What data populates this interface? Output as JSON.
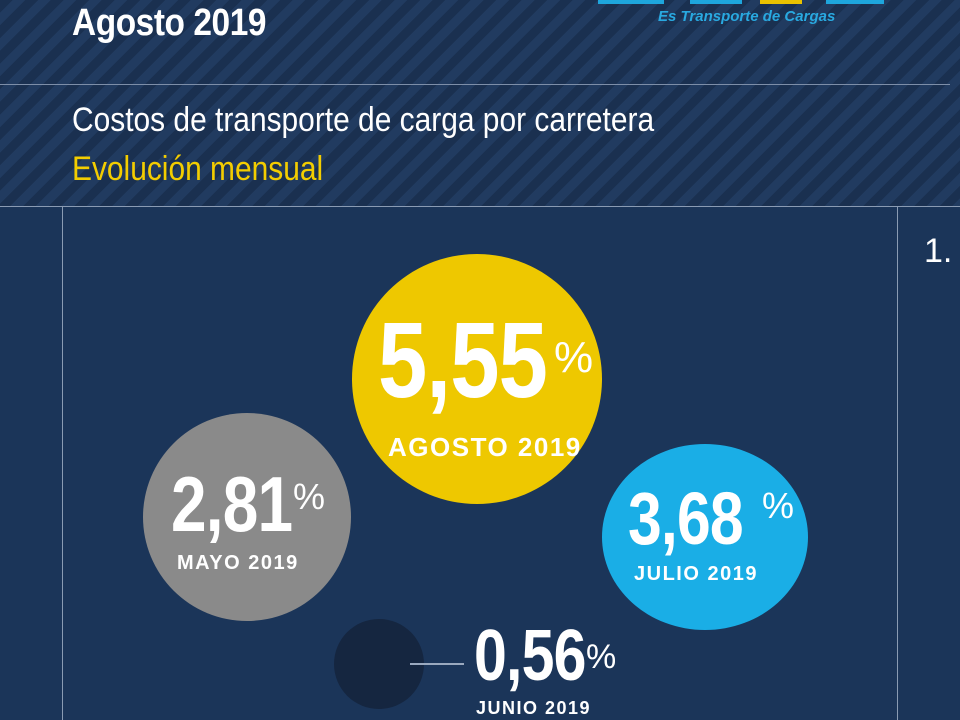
{
  "header": {
    "period": "Agosto 2019",
    "tagline": "Es Transporte de Cargas",
    "title": "Costos de transporte de carga por carretera",
    "subtitle": "Evolución mensual",
    "colors": {
      "yellow": "#f3cd00",
      "blue": "#29a9e0",
      "navy": "#1b3559"
    }
  },
  "side_panel": {
    "number": "1."
  },
  "figures": {
    "agosto": {
      "value": "5,55",
      "unit": "%",
      "label": "AGOSTO 2019",
      "color": "#eec800"
    },
    "mayo": {
      "value": "2,81",
      "unit": "%",
      "label": "MAYO 2019",
      "color": "#8a8a8a"
    },
    "julio": {
      "value": "3,68",
      "unit": "%",
      "label": "JULIO 2019",
      "color": "#1aaee6"
    },
    "junio": {
      "value": "0,56",
      "unit": "%",
      "label": "JUNIO 2019",
      "color": "#152640"
    }
  }
}
